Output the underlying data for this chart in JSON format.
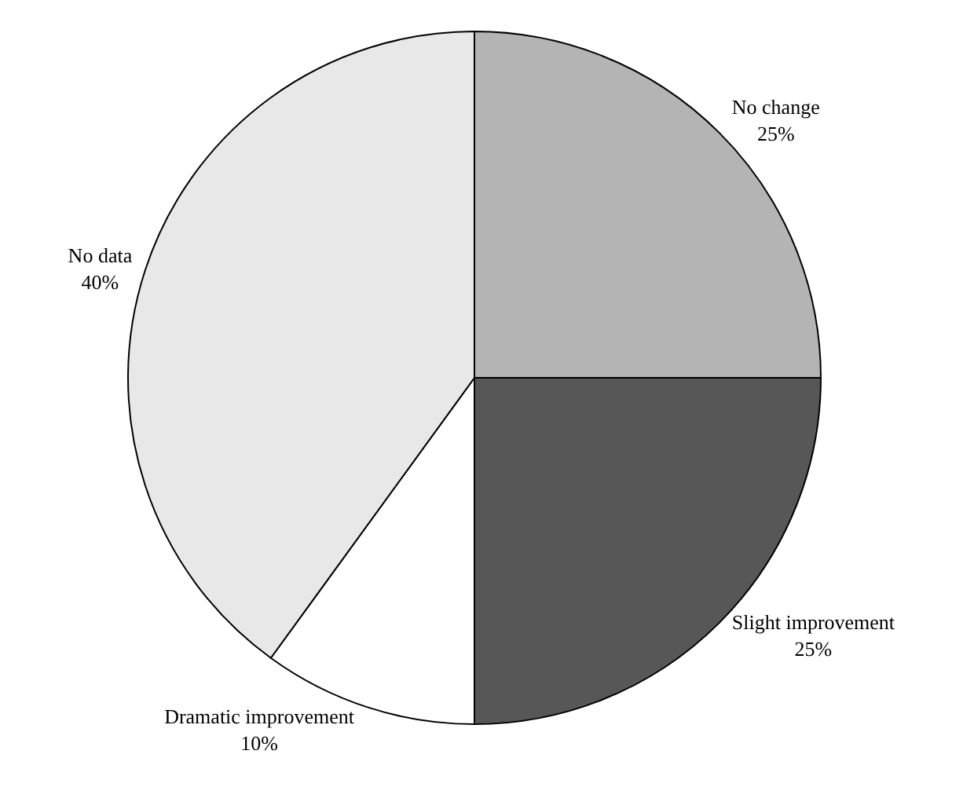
{
  "chart_data": {
    "type": "pie",
    "categories": [
      "No change",
      "Slight improvement",
      "Dramatic improvement",
      "No data"
    ],
    "values": [
      25,
      25,
      10,
      40
    ],
    "value_labels": [
      "25%",
      "25%",
      "10%",
      "40%"
    ],
    "colors": [
      "#b4b4b4",
      "#575757",
      "#ffffff",
      "#e8e8e8"
    ],
    "legend": false
  }
}
